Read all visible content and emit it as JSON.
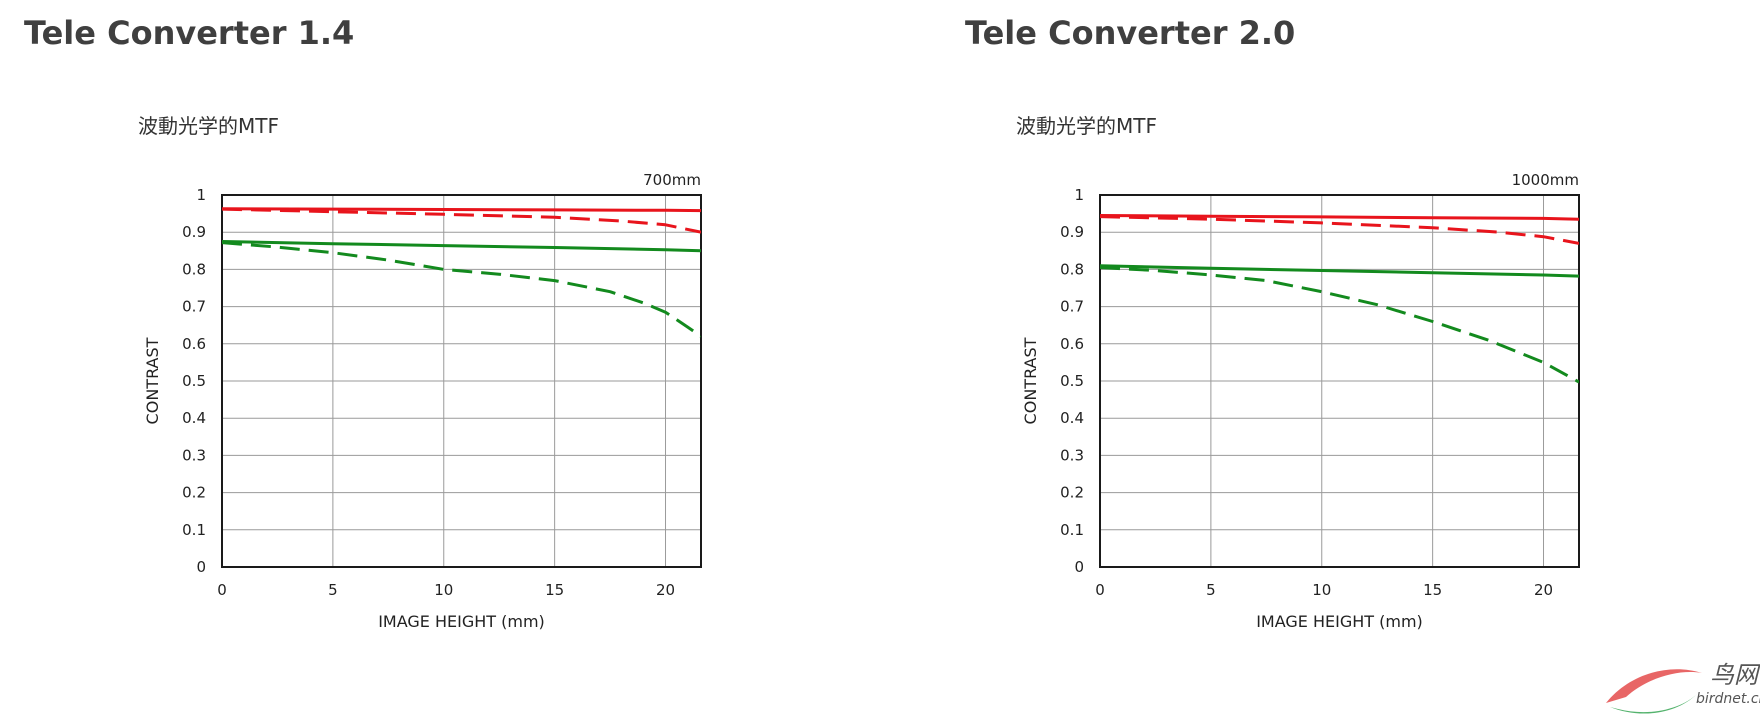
{
  "chart_data": [
    {
      "type": "line",
      "title": "Tele Converter 1.4",
      "subtitle": "波動光学的MTF",
      "focal_length_label": "700mm",
      "xlabel": "IMAGE HEIGHT (mm)",
      "ylabel": "CONTRAST",
      "xlim": [
        0,
        21.6
      ],
      "ylim": [
        0,
        1
      ],
      "x_ticks": [
        0,
        5,
        10,
        15,
        20
      ],
      "y_ticks": [
        0,
        0.1,
        0.2,
        0.3,
        0.4,
        0.5,
        0.6,
        0.7,
        0.8,
        0.9,
        1
      ],
      "y_tick_labels": [
        "0",
        "0.1",
        "0.2",
        "0.3",
        "0.4",
        "0.5",
        "0.6",
        "0.7",
        "0.8",
        "0.9",
        "1"
      ],
      "grid": true,
      "series": [
        {
          "color": "#e8141c",
          "dash": false,
          "x": [
            0,
            5,
            10,
            15,
            20,
            21.6
          ],
          "y": [
            0.963,
            0.962,
            0.961,
            0.96,
            0.959,
            0.958
          ]
        },
        {
          "color": "#e8141c",
          "dash": true,
          "x": [
            0,
            5,
            10,
            15,
            18,
            20,
            21.6
          ],
          "y": [
            0.962,
            0.955,
            0.948,
            0.94,
            0.93,
            0.92,
            0.9
          ]
        },
        {
          "color": "#138a1e",
          "dash": false,
          "x": [
            0,
            5,
            10,
            15,
            20,
            21.6
          ],
          "y": [
            0.875,
            0.869,
            0.864,
            0.859,
            0.853,
            0.85
          ]
        },
        {
          "color": "#138a1e",
          "dash": true,
          "x": [
            0,
            2.5,
            5,
            7.5,
            10,
            12.5,
            15,
            17.5,
            19,
            20,
            21,
            21.6
          ],
          "y": [
            0.872,
            0.86,
            0.845,
            0.825,
            0.8,
            0.787,
            0.77,
            0.74,
            0.71,
            0.685,
            0.645,
            0.62
          ]
        }
      ]
    },
    {
      "type": "line",
      "title": "Tele Converter 2.0",
      "subtitle": "波動光学的MTF",
      "focal_length_label": "1000mm",
      "xlabel": "IMAGE HEIGHT (mm)",
      "ylabel": "CONTRAST",
      "xlim": [
        0,
        21.6
      ],
      "ylim": [
        0,
        1
      ],
      "x_ticks": [
        0,
        5,
        10,
        15,
        20
      ],
      "y_ticks": [
        0,
        0.1,
        0.2,
        0.3,
        0.4,
        0.5,
        0.6,
        0.7,
        0.8,
        0.9,
        1
      ],
      "y_tick_labels": [
        "0",
        "0.1",
        "0.2",
        "0.3",
        "0.4",
        "0.5",
        "0.6",
        "0.7",
        "0.8",
        "0.9",
        "1"
      ],
      "grid": true,
      "series": [
        {
          "color": "#e8141c",
          "dash": false,
          "x": [
            0,
            5,
            10,
            15,
            20,
            21.6
          ],
          "y": [
            0.945,
            0.943,
            0.941,
            0.939,
            0.937,
            0.935
          ]
        },
        {
          "color": "#e8141c",
          "dash": true,
          "x": [
            0,
            5,
            10,
            15,
            18,
            20,
            21.6
          ],
          "y": [
            0.942,
            0.935,
            0.925,
            0.912,
            0.9,
            0.888,
            0.87
          ]
        },
        {
          "color": "#138a1e",
          "dash": false,
          "x": [
            0,
            5,
            10,
            15,
            20,
            21.6
          ],
          "y": [
            0.81,
            0.803,
            0.797,
            0.791,
            0.785,
            0.782
          ]
        },
        {
          "color": "#138a1e",
          "dash": true,
          "x": [
            0,
            2.5,
            5,
            7.5,
            10,
            12.5,
            15,
            17.5,
            20,
            21.6
          ],
          "y": [
            0.805,
            0.797,
            0.785,
            0.77,
            0.74,
            0.705,
            0.66,
            0.61,
            0.55,
            0.497
          ]
        }
      ]
    }
  ],
  "watermark": {
    "main": "鸟网",
    "sub": "birdnet.cn"
  }
}
